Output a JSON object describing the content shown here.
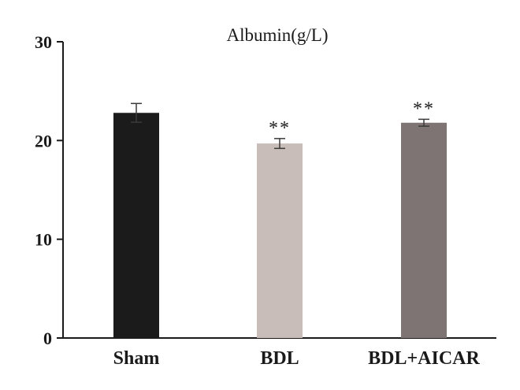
{
  "chart_data": {
    "type": "bar",
    "title": "Albumin(g/L)",
    "categories": [
      "Sham",
      "BDL",
      "BDL+AICAR"
    ],
    "values": [
      22.8,
      19.7,
      21.8
    ],
    "errors": [
      0.95,
      0.5,
      0.35
    ],
    "significance": [
      "",
      "**",
      "**"
    ],
    "colors": [
      "#1b1b1b",
      "#c8bdb9",
      "#7e7473"
    ],
    "ylim": [
      0,
      30
    ],
    "yticks": [
      "0",
      "10",
      "20",
      "30"
    ],
    "xlabel": "",
    "ylabel": "",
    "grid": false,
    "legend": "none"
  }
}
